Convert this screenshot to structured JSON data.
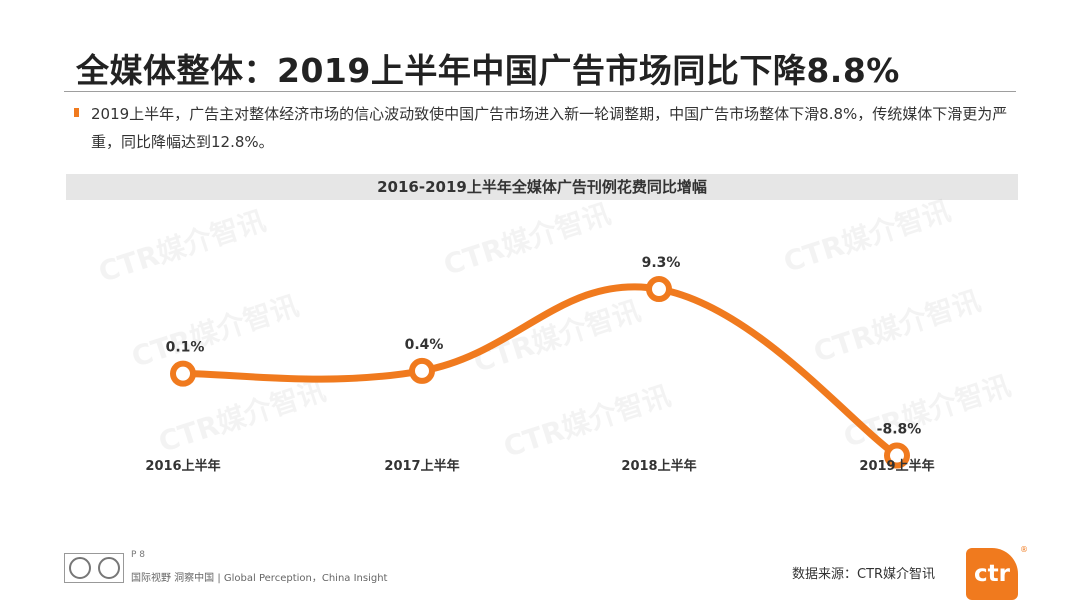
{
  "slide": {
    "title": "全媒体整体：2019上半年中国广告市场同比下降8.8%",
    "bullet": "2019上半年，广告主对整体经济市场的信心波动致使中国广告市场进入新一轮调整期，中国广告市场整体下滑8.8%，传统媒体下滑更为严重，同比降幅达到12.8%。"
  },
  "watermark": {
    "text": "CTR媒介智讯"
  },
  "chart_data": {
    "type": "line",
    "title": "2016-2019上半年全媒体广告刊例花费同比增幅",
    "categories": [
      "2016上半年",
      "2017上半年",
      "2018上半年",
      "2019上半年"
    ],
    "values": [
      0.1,
      0.4,
      9.3,
      -8.8
    ],
    "data_labels": [
      "0.1%",
      "0.4%",
      "9.3%",
      "-8.8%"
    ],
    "unit": "%",
    "ylim": [
      -12,
      13
    ],
    "smooth": true,
    "grid": false,
    "axes_visible": false,
    "line_color": "#f07a1e",
    "marker_fill": "#ffffff"
  },
  "footer": {
    "page": "P 8",
    "tagline": "国际视野 洞察中国 | Global Perception，China Insight",
    "source": "数据来源：CTR媒介智讯",
    "logo_text": "ctr",
    "logo_reg": "®"
  },
  "colors": {
    "accent": "#f07a1e",
    "chart_header_bg": "#e6e6e6",
    "text": "#333333"
  }
}
